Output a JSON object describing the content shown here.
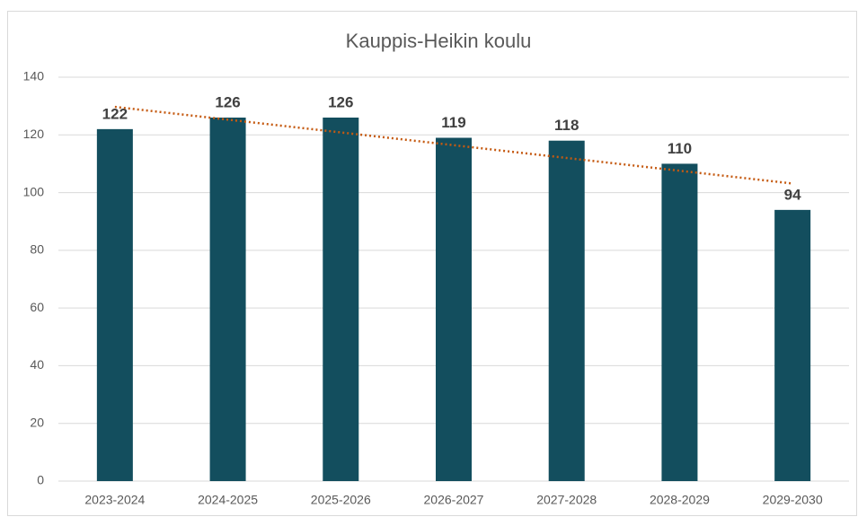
{
  "chart_data": {
    "type": "bar",
    "title": "Kauppis-Heikin koulu",
    "categories": [
      "2023-2024",
      "2024-2025",
      "2025-2026",
      "2026-2027",
      "2027-2028",
      "2028-2029",
      "2029-2030"
    ],
    "values": [
      122,
      126,
      126,
      119,
      118,
      110,
      94
    ],
    "color": "#134e5e",
    "ylim": [
      0,
      140
    ],
    "yticks": [
      0,
      20,
      40,
      60,
      80,
      100,
      120,
      140
    ],
    "grid": true,
    "trendline": "linear",
    "trendline_color": "#c55a11"
  }
}
